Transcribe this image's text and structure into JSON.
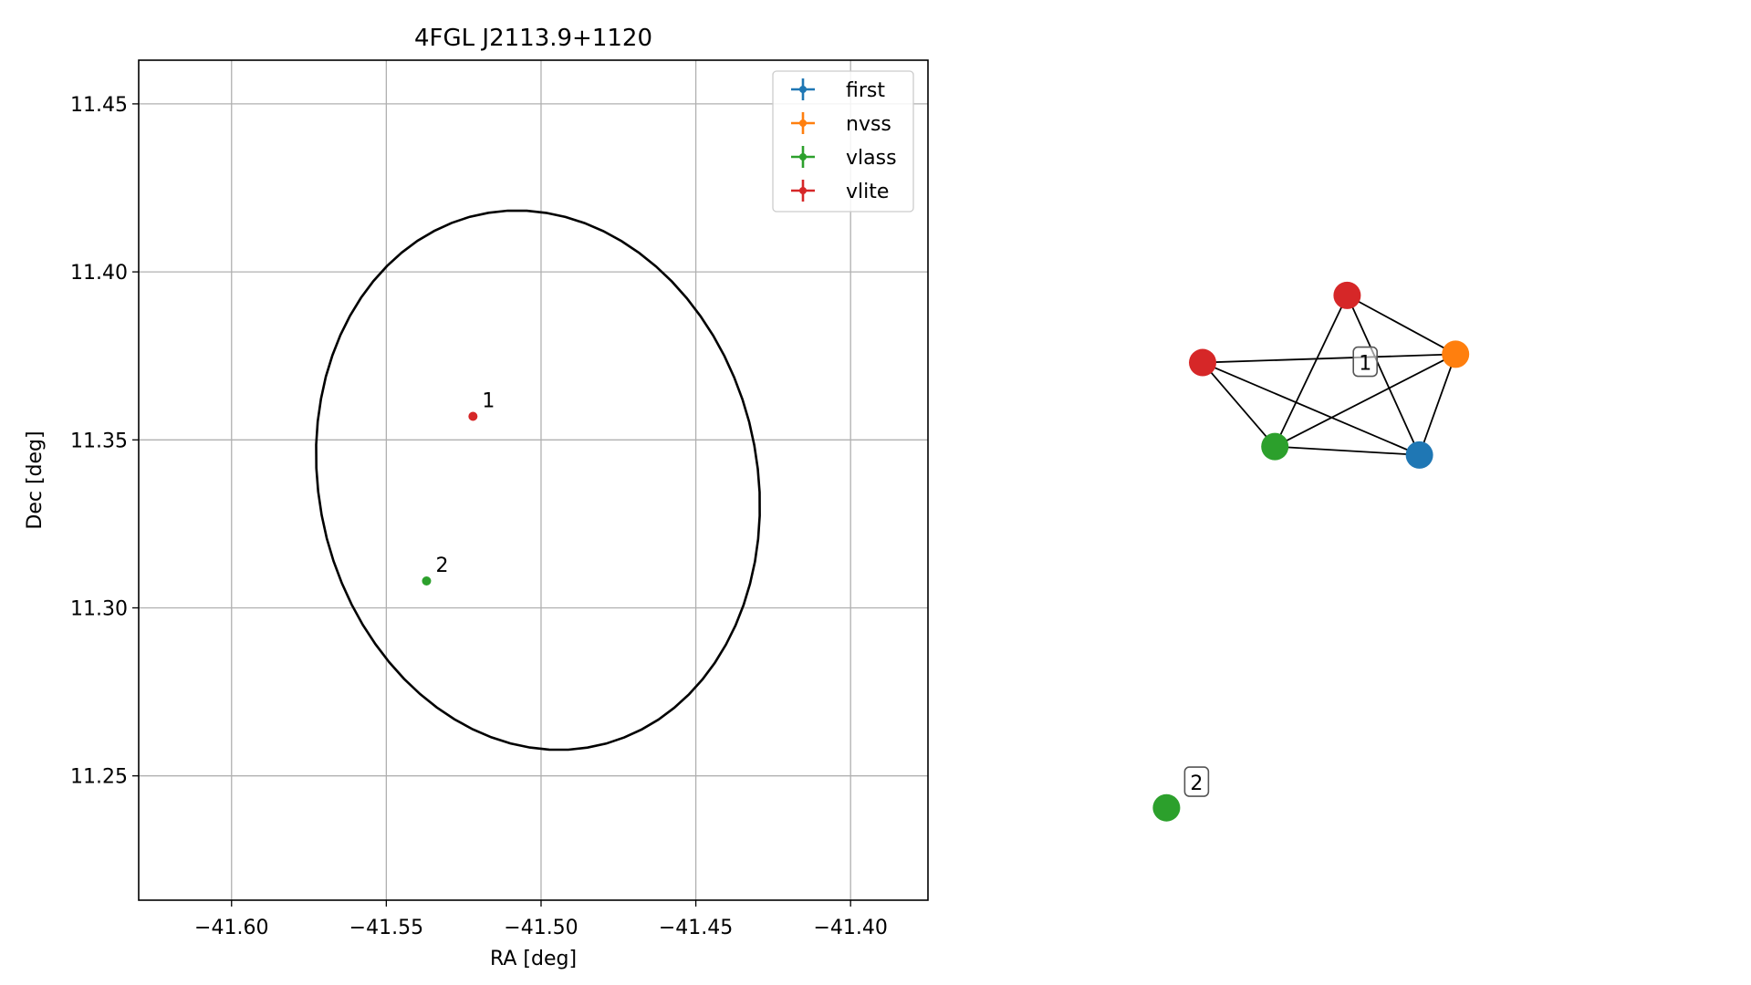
{
  "chart_data": [
    {
      "type": "scatter",
      "title": "4FGL J2113.9+1120",
      "xlabel": "RA [deg]",
      "ylabel": "Dec [deg]",
      "xlim": [
        -41.63,
        -41.375
      ],
      "ylim": [
        11.213,
        11.463
      ],
      "x_ticks": [
        -41.6,
        -41.55,
        -41.5,
        -41.45,
        -41.4
      ],
      "x_tick_labels": [
        "−41.60",
        "−41.55",
        "−41.50",
        "−41.45",
        "−41.40"
      ],
      "y_ticks": [
        11.25,
        11.3,
        11.35,
        11.4,
        11.45
      ],
      "y_tick_labels": [
        "11.25",
        "11.30",
        "11.35",
        "11.40",
        "11.45"
      ],
      "grid": true,
      "legend_position": "top-right",
      "series": [
        {
          "name": "first",
          "color": "#1f77b4",
          "points": []
        },
        {
          "name": "nvss",
          "color": "#ff7f0e",
          "points": []
        },
        {
          "name": "vlass",
          "color": "#2ca02c",
          "points": [
            {
              "x": -41.537,
              "y": 11.308,
              "label": "2"
            }
          ]
        },
        {
          "name": "vlite",
          "color": "#d62728",
          "points": [
            {
              "x": -41.522,
              "y": 11.357,
              "label": "1"
            }
          ]
        }
      ],
      "ellipse": {
        "color": "#000000",
        "center": [
          -41.501,
          11.338
        ],
        "semi_axes": [
          0.0703,
          0.0815
        ],
        "orientation_deg": 20
      }
    },
    {
      "type": "network",
      "nodes": [
        {
          "id": "red-top",
          "color": "#d62728",
          "x": 0.54,
          "y": 0.72
        },
        {
          "id": "red-left",
          "color": "#d62728",
          "x": 0.3,
          "y": 0.64
        },
        {
          "id": "orange",
          "color": "#ff7f0e",
          "x": 0.72,
          "y": 0.65
        },
        {
          "id": "green",
          "color": "#2ca02c",
          "x": 0.42,
          "y": 0.54
        },
        {
          "id": "blue",
          "color": "#1f77b4",
          "x": 0.66,
          "y": 0.53
        },
        {
          "id": "green-2",
          "color": "#2ca02c",
          "x": 0.24,
          "y": 0.11
        }
      ],
      "edges": [
        [
          "red-top",
          "orange"
        ],
        [
          "red-top",
          "green"
        ],
        [
          "red-top",
          "blue"
        ],
        [
          "red-left",
          "orange"
        ],
        [
          "red-left",
          "green"
        ],
        [
          "red-left",
          "blue"
        ],
        [
          "orange",
          "green"
        ],
        [
          "orange",
          "blue"
        ],
        [
          "green",
          "blue"
        ]
      ],
      "group_labels": [
        {
          "text": "1",
          "x": 0.57,
          "y": 0.64
        },
        {
          "text": "2",
          "x": 0.29,
          "y": 0.14
        }
      ]
    }
  ]
}
